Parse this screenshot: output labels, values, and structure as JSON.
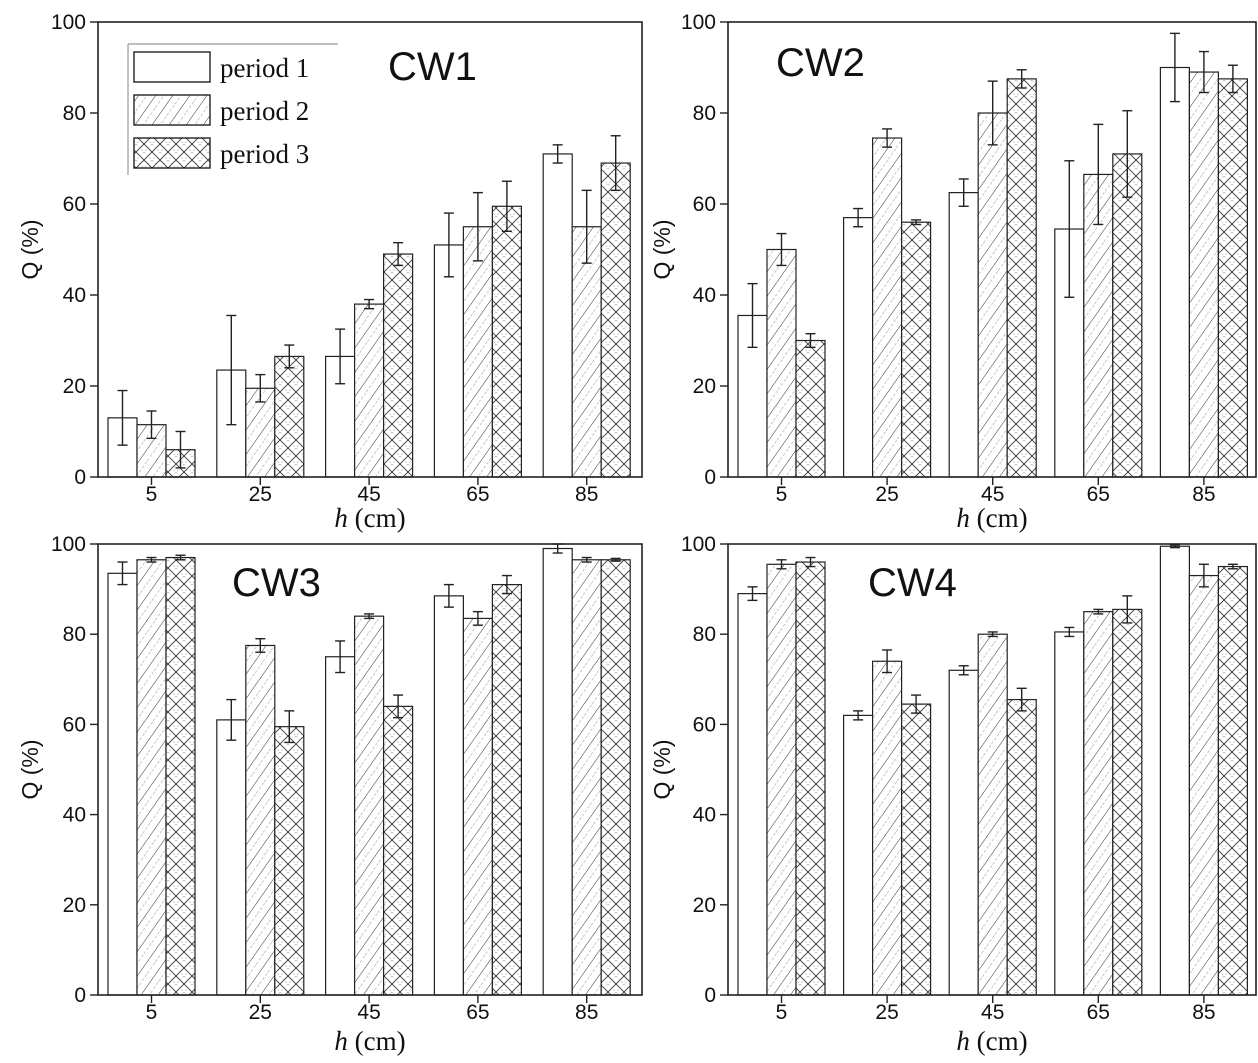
{
  "chart_data": [
    {
      "type": "bar",
      "title": "CW1",
      "xlabel": "h (cm)",
      "ylabel": "Q (%)",
      "ylim": [
        0,
        100
      ],
      "yticks": [
        "0",
        "20",
        "40",
        "60",
        "80",
        "100"
      ],
      "categories": [
        "5",
        "25",
        "45",
        "65",
        "85"
      ],
      "series": [
        {
          "name": "period 1",
          "values": [
            13,
            23.5,
            26.5,
            51,
            71
          ],
          "errors": [
            6,
            12,
            6,
            7,
            2
          ]
        },
        {
          "name": "period 2",
          "values": [
            11.5,
            19.5,
            38,
            55,
            55
          ],
          "errors": [
            3,
            3,
            1,
            7.5,
            8
          ]
        },
        {
          "name": "period 3",
          "values": [
            6,
            26.5,
            49,
            59.5,
            69
          ],
          "errors": [
            4,
            2.5,
            2.5,
            5.5,
            6
          ]
        }
      ]
    },
    {
      "type": "bar",
      "title": "CW2",
      "xlabel": "h (cm)",
      "ylabel": "Q (%)",
      "ylim": [
        0,
        100
      ],
      "yticks": [
        "0",
        "20",
        "40",
        "60",
        "80",
        "100"
      ],
      "categories": [
        "5",
        "25",
        "45",
        "65",
        "85"
      ],
      "series": [
        {
          "name": "period 1",
          "values": [
            35.5,
            57,
            62.5,
            54.5,
            90
          ],
          "errors": [
            7,
            2,
            3,
            15,
            7.5
          ]
        },
        {
          "name": "period 2",
          "values": [
            50,
            74.5,
            80,
            66.5,
            89
          ],
          "errors": [
            3.5,
            2,
            7,
            11,
            4.5
          ]
        },
        {
          "name": "period 3",
          "values": [
            30,
            56,
            87.5,
            71,
            87.5
          ],
          "errors": [
            1.5,
            0.5,
            2,
            9.5,
            3
          ]
        }
      ]
    },
    {
      "type": "bar",
      "title": "CW3",
      "xlabel": "h (cm)",
      "ylabel": "Q (%)",
      "ylim": [
        0,
        100
      ],
      "yticks": [
        "0",
        "20",
        "40",
        "60",
        "80",
        "100"
      ],
      "categories": [
        "5",
        "25",
        "45",
        "65",
        "85"
      ],
      "series": [
        {
          "name": "period 1",
          "values": [
            93.5,
            61,
            75,
            88.5,
            99
          ],
          "errors": [
            2.5,
            4.5,
            3.5,
            2.5,
            1
          ]
        },
        {
          "name": "period 2",
          "values": [
            96.5,
            77.5,
            84,
            83.5,
            96.5
          ],
          "errors": [
            0.5,
            1.5,
            0.5,
            1.5,
            0.5
          ]
        },
        {
          "name": "period 3",
          "values": [
            97,
            59.5,
            64,
            91,
            96.5
          ],
          "errors": [
            0.5,
            3.5,
            2.5,
            2,
            0.3
          ]
        }
      ]
    },
    {
      "type": "bar",
      "title": "CW4",
      "xlabel": "h (cm)",
      "ylabel": "Q (%)",
      "ylim": [
        0,
        100
      ],
      "yticks": [
        "0",
        "20",
        "40",
        "60",
        "80",
        "100"
      ],
      "categories": [
        "5",
        "25",
        "45",
        "65",
        "85"
      ],
      "series": [
        {
          "name": "period 1",
          "values": [
            89,
            62,
            72,
            80.5,
            99.5
          ],
          "errors": [
            1.5,
            1,
            1,
            1,
            0.3
          ]
        },
        {
          "name": "period 2",
          "values": [
            95.5,
            74,
            80,
            85,
            93
          ],
          "errors": [
            1,
            2.5,
            0.5,
            0.5,
            2.5
          ]
        },
        {
          "name": "period 3",
          "values": [
            96,
            64.5,
            65.5,
            85.5,
            95
          ],
          "errors": [
            1,
            2,
            2.5,
            3,
            0.5
          ]
        }
      ]
    }
  ],
  "legend": {
    "position": "top-left of CW1 panel",
    "entries": [
      {
        "label": "period 1",
        "pattern": "none"
      },
      {
        "label": "period 2",
        "pattern": "diagonal hatch"
      },
      {
        "label": "period 3",
        "pattern": "cross hatch"
      }
    ]
  }
}
